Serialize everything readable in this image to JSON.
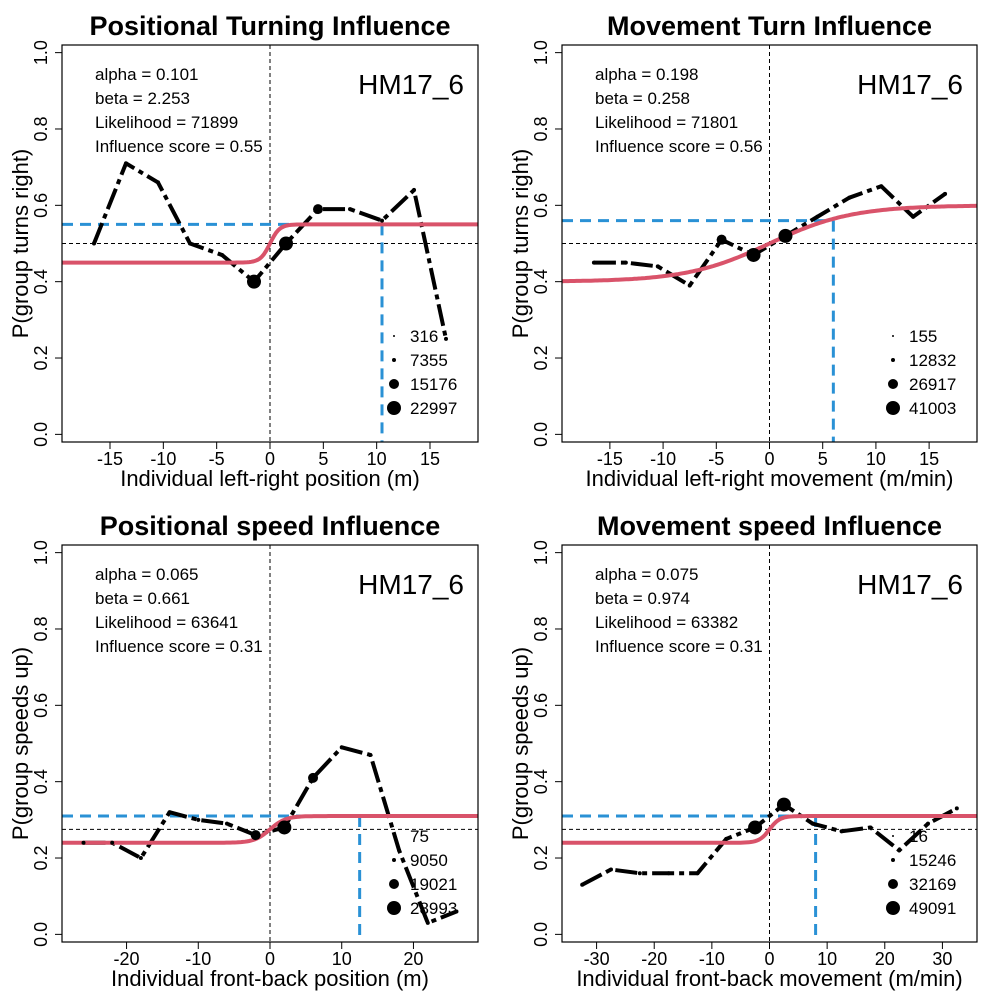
{
  "chart_data": [
    {
      "type": "line",
      "title": "Positional Turning Influence",
      "xlabel": "Individual left-right position (m)",
      "ylabel": "P(group turns right)",
      "xlim": [
        -19.5,
        19.5
      ],
      "ylim": [
        -0.02,
        1.02
      ],
      "xticks": [
        -15,
        -10,
        -5,
        0,
        5,
        10,
        15
      ],
      "yticks": [
        0.0,
        0.2,
        0.4,
        0.6,
        0.8,
        1.0
      ],
      "id_label": "HM17_6",
      "stats": [
        "alpha = 0.101",
        "beta = 2.253",
        "Likelihood = 71899",
        "Influence score =  0.55"
      ],
      "legend": [
        "316",
        "7355",
        "15176",
        "22997"
      ],
      "observed": {
        "x": [
          -16.5,
          -13.5,
          -10.5,
          -7.5,
          -4.5,
          -1.5,
          1.5,
          4.5,
          7.5,
          10.5,
          13.5,
          16.5
        ],
        "y": [
          0.5,
          0.71,
          0.66,
          0.5,
          0.47,
          0.4,
          0.5,
          0.59,
          0.59,
          0.56,
          0.64,
          0.25
        ],
        "sizes": [
          1,
          1,
          1,
          1,
          1,
          3,
          3,
          2,
          1,
          1,
          1,
          1
        ]
      },
      "fit": {
        "low": 0.45,
        "high": 0.55,
        "center": 0,
        "scale": 0.45
      },
      "reference": {
        "x": 0,
        "y": 0.5
      },
      "influence": {
        "x": 10.5,
        "y": 0.55
      }
    },
    {
      "type": "line",
      "title": "Movement Turn Influence",
      "xlabel": "Individual left-right movement (m/min)",
      "ylabel": "P(group turns right)",
      "xlim": [
        -19.5,
        19.5
      ],
      "ylim": [
        -0.02,
        1.02
      ],
      "xticks": [
        -15,
        -10,
        -5,
        0,
        5,
        10,
        15
      ],
      "yticks": [
        0.0,
        0.2,
        0.4,
        0.6,
        0.8,
        1.0
      ],
      "id_label": "HM17_6",
      "stats": [
        "alpha = 0.198",
        "beta = 0.258",
        "Likelihood = 71801",
        "Influence score =  0.56"
      ],
      "legend": [
        "155",
        "12832",
        "26917",
        "41003"
      ],
      "observed": {
        "x": [
          -16.5,
          -13.5,
          -10.5,
          -7.5,
          -4.5,
          -1.5,
          1.5,
          4.5,
          7.5,
          10.5,
          13.5,
          16.5
        ],
        "y": [
          0.45,
          0.45,
          0.44,
          0.39,
          0.51,
          0.47,
          0.52,
          0.57,
          0.62,
          0.65,
          0.57,
          0.63
        ],
        "sizes": [
          1,
          1,
          1,
          1,
          2,
          3,
          3,
          1,
          1,
          1,
          1,
          1
        ]
      },
      "fit": {
        "low": 0.4,
        "high": 0.6,
        "center": 0,
        "scale": 3.9
      },
      "reference": {
        "x": 0,
        "y": 0.5
      },
      "influence": {
        "x": 6,
        "y": 0.56
      }
    },
    {
      "type": "line",
      "title": "Positional speed Influence",
      "xlabel": "Individual front-back position (m)",
      "ylabel": "P(group speeds up)",
      "xlim": [
        -29,
        29
      ],
      "ylim": [
        -0.02,
        1.02
      ],
      "xticks": [
        -20,
        -10,
        0,
        10,
        20
      ],
      "yticks": [
        0.0,
        0.2,
        0.4,
        0.6,
        0.8,
        1.0
      ],
      "id_label": "HM17_6",
      "stats": [
        "alpha = 0.065",
        "beta = 0.661",
        "Likelihood = 63641",
        "Influence score =  0.31"
      ],
      "legend": [
        "75",
        "9050",
        "19021",
        "28993"
      ],
      "observed": {
        "x": [
          -26,
          -22,
          -18,
          -14,
          -10,
          -6,
          -2,
          2,
          6,
          10,
          14,
          18,
          22,
          26
        ],
        "y": [
          0.24,
          0.24,
          0.2,
          0.32,
          0.3,
          0.29,
          0.26,
          0.28,
          0.41,
          0.49,
          0.47,
          0.22,
          0.03,
          0.06
        ],
        "sizes": [
          1,
          1,
          1,
          1,
          1,
          1,
          2,
          3,
          2,
          1,
          1,
          1,
          1,
          1
        ]
      },
      "fit": {
        "low": 0.24,
        "high": 0.31,
        "center": 0,
        "scale": 1.1
      },
      "reference": {
        "x": 0,
        "y": 0.275
      },
      "influence": {
        "x": 12.5,
        "y": 0.31
      }
    },
    {
      "type": "line",
      "title": "Movement speed Influence",
      "xlabel": "Individual front-back movement (m/min)",
      "ylabel": "P(group speeds up)",
      "xlim": [
        -36,
        36
      ],
      "ylim": [
        -0.02,
        1.02
      ],
      "xticks": [
        -30,
        -20,
        -10,
        0,
        10,
        20,
        30
      ],
      "yticks": [
        0.0,
        0.2,
        0.4,
        0.6,
        0.8,
        1.0
      ],
      "id_label": "HM17_6",
      "stats": [
        "alpha = 0.075",
        "beta = 0.974",
        "Likelihood = 63382",
        "Influence score =  0.31"
      ],
      "legend": [
        "16",
        "15246",
        "32169",
        "49091"
      ],
      "observed": {
        "x": [
          -32.5,
          -27.5,
          -22.5,
          -17.5,
          -12.5,
          -7.5,
          -2.5,
          2.5,
          7.5,
          12.5,
          17.5,
          22.5,
          27.5,
          32.5
        ],
        "y": [
          0.13,
          0.17,
          0.16,
          0.16,
          0.16,
          0.25,
          0.28,
          0.34,
          0.29,
          0.27,
          0.28,
          0.22,
          0.29,
          0.33
        ],
        "sizes": [
          1,
          1,
          1,
          1,
          1,
          1,
          3,
          3,
          1,
          1,
          1,
          1,
          1,
          1
        ]
      },
      "fit": {
        "low": 0.24,
        "high": 0.31,
        "center": 0,
        "scale": 0.9
      },
      "reference": {
        "x": 0,
        "y": 0.275
      },
      "influence": {
        "x": 8,
        "y": 0.31
      }
    }
  ],
  "colors": {
    "observed": "#000000",
    "fit": "#d9536a",
    "influence": "#2a91d5",
    "reference": "#000000"
  }
}
